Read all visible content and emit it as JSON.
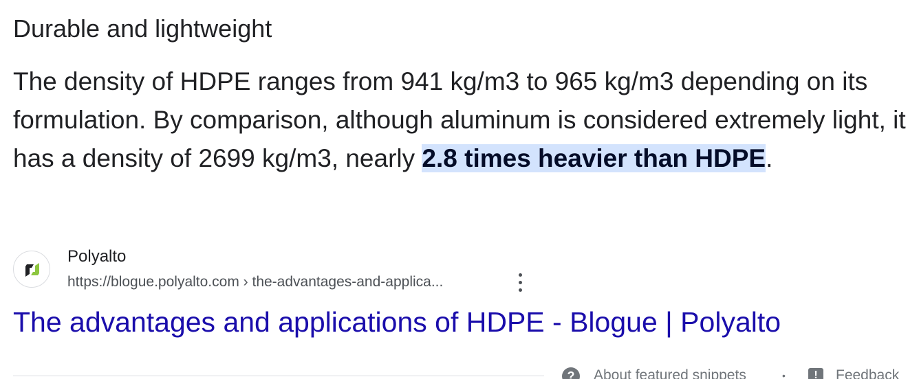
{
  "snippet": {
    "heading": "Durable and lightweight",
    "body_before": "The density of HDPE ranges from 941 kg/m3 to 965 kg/m3 depending on its formulation. By comparison, although aluminum is considered extremely light, it has a density of 2699 kg/m3, nearly ",
    "body_highlight": "2.8 times heavier than HDPE",
    "body_after": "."
  },
  "source": {
    "favicon_icon": "polyalto-logo-icon",
    "site_name": "Polyalto",
    "url": "https://blogue.polyalto.com › the-advantages-and-applica...",
    "more_icon": "more-vert-icon"
  },
  "result": {
    "title": "The advantages and applications of HDPE - Blogue | Polyalto"
  },
  "footer": {
    "help_icon": "question-circle-icon",
    "help_glyph": "?",
    "about_label": "About featured snippets",
    "separator": "•",
    "feedback_icon": "feedback-icon",
    "feedback_glyph": "!",
    "feedback_label": "Feedback"
  },
  "colors": {
    "link": "#1a0dab",
    "highlight_bg": "#d3e3fd",
    "text": "#202124",
    "secondary_text": "#4d5156",
    "logo_green": "#8dc63f",
    "logo_dark": "#202124"
  }
}
